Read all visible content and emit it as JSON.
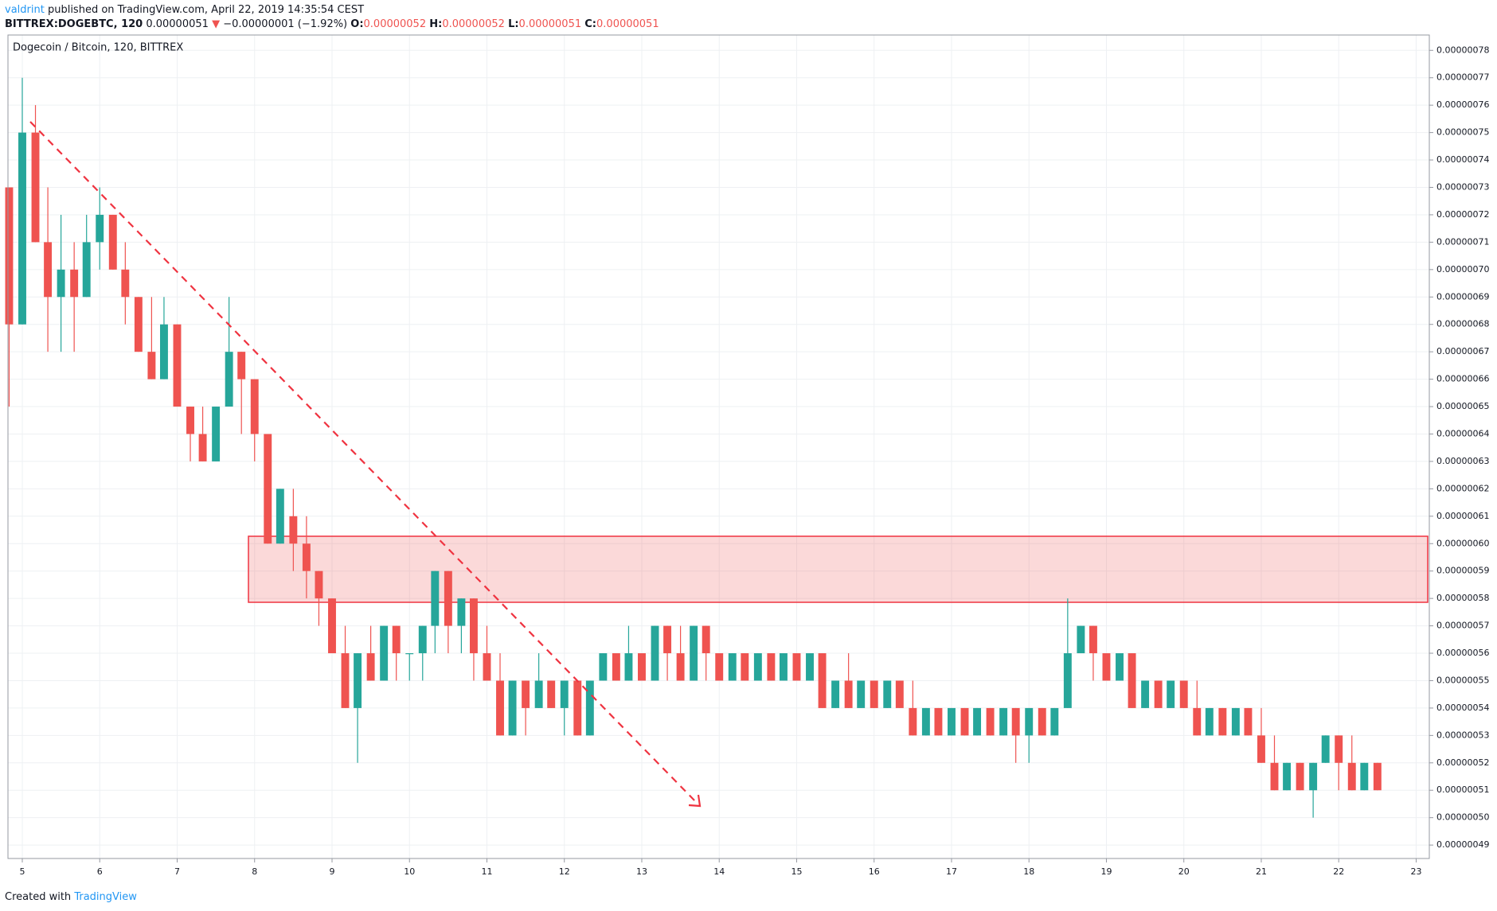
{
  "header": {
    "author": "valdrint",
    "published": "published on TradingView.com, April 22, 2019 14:35:54 CEST",
    "symbol": "BITTREX:DOGEBTC, 120",
    "price": "0.00000051",
    "change": "−0.00000001 (−1.92%)",
    "ohlc": [
      {
        "label": "O:",
        "value": "0.00000052"
      },
      {
        "label": "H:",
        "value": "0.00000052"
      },
      {
        "label": "L:",
        "value": "0.00000051"
      },
      {
        "label": "C:",
        "value": "0.00000051"
      }
    ]
  },
  "footer": {
    "text": "Created with",
    "brand": "TradingView"
  },
  "chart_data": {
    "type": "candlestick",
    "title": "Dogecoin / Bitcoin, 120, BITTREX",
    "up_color": "#26a69a",
    "down_color": "#ef5350",
    "grid": true,
    "xlim": [
      4.815,
      23.17
    ],
    "ylim": [
      4.851e-07,
      7.856e-07
    ],
    "xticks": [
      5,
      6,
      7,
      8,
      9,
      10,
      11,
      12,
      13,
      14,
      15,
      16,
      17,
      18,
      19,
      20,
      21,
      22,
      23
    ],
    "yticks": [
      {
        "value": 7.8e-07,
        "label": "0.00000078"
      },
      {
        "value": 7.7e-07,
        "label": "0.00000077"
      },
      {
        "value": 7.6e-07,
        "label": "0.00000076"
      },
      {
        "value": 7.5e-07,
        "label": "0.00000075"
      },
      {
        "value": 7.4e-07,
        "label": "0.00000074"
      },
      {
        "value": 7.3e-07,
        "label": "0.00000073"
      },
      {
        "value": 7.2e-07,
        "label": "0.00000072"
      },
      {
        "value": 7.1e-07,
        "label": "0.00000071"
      },
      {
        "value": 7e-07,
        "label": "0.00000070"
      },
      {
        "value": 6.9e-07,
        "label": "0.00000069"
      },
      {
        "value": 6.8e-07,
        "label": "0.00000068"
      },
      {
        "value": 6.7e-07,
        "label": "0.00000067"
      },
      {
        "value": 6.6e-07,
        "label": "0.00000066"
      },
      {
        "value": 6.5e-07,
        "label": "0.00000065"
      },
      {
        "value": 6.4e-07,
        "label": "0.00000064"
      },
      {
        "value": 6.3e-07,
        "label": "0.00000063"
      },
      {
        "value": 6.2e-07,
        "label": "0.00000062"
      },
      {
        "value": 6.1e-07,
        "label": "0.00000061"
      },
      {
        "value": 6e-07,
        "label": "0.00000060"
      },
      {
        "value": 5.9e-07,
        "label": "0.00000059"
      },
      {
        "value": 5.8e-07,
        "label": "0.00000058"
      },
      {
        "value": 5.7e-07,
        "label": "0.00000057"
      },
      {
        "value": 5.6e-07,
        "label": "0.00000056"
      },
      {
        "value": 5.5e-07,
        "label": "0.00000055"
      },
      {
        "value": 5.4e-07,
        "label": "0.00000054"
      },
      {
        "value": 5.3e-07,
        "label": "0.00000053"
      },
      {
        "value": 5.2e-07,
        "label": "0.00000052"
      },
      {
        "value": 5.1e-07,
        "label": "0.00000051"
      },
      {
        "value": 5e-07,
        "label": "0.00000050"
      },
      {
        "value": 4.9e-07,
        "label": "0.00000049"
      }
    ],
    "x": [
      4.83,
      5,
      5.17,
      5.33,
      5.5,
      5.67,
      5.83,
      6,
      6.17,
      6.33,
      6.5,
      6.67,
      6.83,
      7,
      7.17,
      7.33,
      7.5,
      7.67,
      7.83,
      8,
      8.17,
      8.33,
      8.5,
      8.67,
      8.83,
      9,
      9.17,
      9.33,
      9.5,
      9.67,
      9.83,
      10,
      10.17,
      10.33,
      10.5,
      10.67,
      10.83,
      11,
      11.17,
      11.33,
      11.5,
      11.67,
      11.83,
      12,
      12.17,
      12.33,
      12.5,
      12.67,
      12.83,
      13,
      13.17,
      13.33,
      13.5,
      13.67,
      13.83,
      14,
      14.17,
      14.33,
      14.5,
      14.67,
      14.83,
      15,
      15.17,
      15.33,
      15.5,
      15.67,
      15.83,
      16,
      16.17,
      16.33,
      16.5,
      16.67,
      16.83,
      17,
      17.17,
      17.33,
      17.5,
      17.67,
      17.83,
      18,
      18.17,
      18.33,
      18.5,
      18.67,
      18.83,
      19,
      19.17,
      19.33,
      19.5,
      19.67,
      19.83,
      20,
      20.17,
      20.33,
      20.5,
      20.67,
      20.83,
      21,
      21.17,
      21.33,
      21.5,
      21.67,
      21.83,
      22,
      22.17,
      22.33,
      22.5
    ],
    "open": [
      7.3e-07,
      6.8e-07,
      7.5e-07,
      7.1e-07,
      6.9e-07,
      7e-07,
      6.9e-07,
      7.1e-07,
      7.2e-07,
      7e-07,
      6.9e-07,
      6.7e-07,
      6.6e-07,
      6.8e-07,
      6.5e-07,
      6.4e-07,
      6.3e-07,
      6.5e-07,
      6.7e-07,
      6.6e-07,
      6.4e-07,
      6e-07,
      6.1e-07,
      6e-07,
      5.9e-07,
      5.8e-07,
      5.6e-07,
      5.4e-07,
      5.6e-07,
      5.5e-07,
      5.7e-07,
      5.6e-07,
      5.6e-07,
      5.7e-07,
      5.9e-07,
      5.7e-07,
      5.8e-07,
      5.6e-07,
      5.5e-07,
      5.3e-07,
      5.5e-07,
      5.4e-07,
      5.5e-07,
      5.4e-07,
      5.5e-07,
      5.3e-07,
      5.5e-07,
      5.6e-07,
      5.5e-07,
      5.6e-07,
      5.5e-07,
      5.7e-07,
      5.6e-07,
      5.5e-07,
      5.7e-07,
      5.6e-07,
      5.5e-07,
      5.6e-07,
      5.5e-07,
      5.6e-07,
      5.5e-07,
      5.6e-07,
      5.5e-07,
      5.6e-07,
      5.4e-07,
      5.5e-07,
      5.4e-07,
      5.5e-07,
      5.4e-07,
      5.5e-07,
      5.4e-07,
      5.3e-07,
      5.4e-07,
      5.3e-07,
      5.4e-07,
      5.3e-07,
      5.4e-07,
      5.3e-07,
      5.4e-07,
      5.3e-07,
      5.4e-07,
      5.3e-07,
      5.4e-07,
      5.6e-07,
      5.7e-07,
      5.6e-07,
      5.5e-07,
      5.6e-07,
      5.4e-07,
      5.5e-07,
      5.4e-07,
      5.5e-07,
      5.4e-07,
      5.3e-07,
      5.4e-07,
      5.3e-07,
      5.4e-07,
      5.3e-07,
      5.2e-07,
      5.1e-07,
      5.2e-07,
      5.1e-07,
      5.2e-07,
      5.3e-07,
      5.2e-07,
      5.1e-07,
      5.2e-07
    ],
    "high": [
      7.3e-07,
      7.7e-07,
      7.6e-07,
      7.3e-07,
      7.2e-07,
      7.1e-07,
      7.2e-07,
      7.3e-07,
      7.2e-07,
      7.1e-07,
      6.9e-07,
      6.9e-07,
      6.9e-07,
      6.8e-07,
      6.5e-07,
      6.5e-07,
      6.5e-07,
      6.9e-07,
      6.7e-07,
      6.6e-07,
      6.4e-07,
      6.2e-07,
      6.2e-07,
      6.1e-07,
      5.9e-07,
      5.8e-07,
      5.7e-07,
      5.6e-07,
      5.7e-07,
      5.7e-07,
      5.7e-07,
      5.6e-07,
      5.7e-07,
      5.9e-07,
      5.9e-07,
      5.8e-07,
      5.8e-07,
      5.7e-07,
      5.6e-07,
      5.5e-07,
      5.5e-07,
      5.6e-07,
      5.5e-07,
      5.5e-07,
      5.5e-07,
      5.5e-07,
      5.6e-07,
      5.6e-07,
      5.7e-07,
      5.6e-07,
      5.7e-07,
      5.7e-07,
      5.7e-07,
      5.7e-07,
      5.7e-07,
      5.6e-07,
      5.6e-07,
      5.6e-07,
      5.6e-07,
      5.6e-07,
      5.6e-07,
      5.6e-07,
      5.6e-07,
      5.6e-07,
      5.5e-07,
      5.6e-07,
      5.5e-07,
      5.5e-07,
      5.5e-07,
      5.5e-07,
      5.5e-07,
      5.4e-07,
      5.4e-07,
      5.4e-07,
      5.4e-07,
      5.4e-07,
      5.4e-07,
      5.4e-07,
      5.4e-07,
      5.4e-07,
      5.4e-07,
      5.4e-07,
      5.8e-07,
      5.7e-07,
      5.7e-07,
      5.6e-07,
      5.6e-07,
      5.6e-07,
      5.5e-07,
      5.5e-07,
      5.5e-07,
      5.5e-07,
      5.5e-07,
      5.4e-07,
      5.4e-07,
      5.4e-07,
      5.4e-07,
      5.4e-07,
      5.3e-07,
      5.2e-07,
      5.2e-07,
      5.2e-07,
      5.3e-07,
      5.3e-07,
      5.3e-07,
      5.2e-07,
      5.2e-07
    ],
    "low": [
      6.5e-07,
      6.8e-07,
      7.1e-07,
      6.7e-07,
      6.7e-07,
      6.7e-07,
      6.9e-07,
      7e-07,
      7e-07,
      6.8e-07,
      6.7e-07,
      6.6e-07,
      6.6e-07,
      6.5e-07,
      6.3e-07,
      6.3e-07,
      6.3e-07,
      6.5e-07,
      6.4e-07,
      6.3e-07,
      6e-07,
      6e-07,
      5.9e-07,
      5.8e-07,
      5.7e-07,
      5.6e-07,
      5.4e-07,
      5.2e-07,
      5.5e-07,
      5.5e-07,
      5.5e-07,
      5.5e-07,
      5.5e-07,
      5.6e-07,
      5.6e-07,
      5.6e-07,
      5.5e-07,
      5.5e-07,
      5.3e-07,
      5.3e-07,
      5.3e-07,
      5.4e-07,
      5.4e-07,
      5.3e-07,
      5.3e-07,
      5.3e-07,
      5.5e-07,
      5.5e-07,
      5.5e-07,
      5.5e-07,
      5.5e-07,
      5.5e-07,
      5.5e-07,
      5.5e-07,
      5.5e-07,
      5.5e-07,
      5.5e-07,
      5.5e-07,
      5.5e-07,
      5.5e-07,
      5.5e-07,
      5.5e-07,
      5.5e-07,
      5.4e-07,
      5.4e-07,
      5.4e-07,
      5.4e-07,
      5.4e-07,
      5.4e-07,
      5.4e-07,
      5.3e-07,
      5.3e-07,
      5.3e-07,
      5.3e-07,
      5.3e-07,
      5.3e-07,
      5.3e-07,
      5.3e-07,
      5.2e-07,
      5.2e-07,
      5.3e-07,
      5.3e-07,
      5.4e-07,
      5.6e-07,
      5.5e-07,
      5.5e-07,
      5.5e-07,
      5.4e-07,
      5.4e-07,
      5.4e-07,
      5.4e-07,
      5.4e-07,
      5.3e-07,
      5.3e-07,
      5.3e-07,
      5.3e-07,
      5.3e-07,
      5.2e-07,
      5.1e-07,
      5.1e-07,
      5.1e-07,
      5e-07,
      5.2e-07,
      5.1e-07,
      5.1e-07,
      5.1e-07,
      5.1e-07
    ],
    "close": [
      6.8e-07,
      7.5e-07,
      7.1e-07,
      6.9e-07,
      7e-07,
      6.9e-07,
      7.1e-07,
      7.2e-07,
      7e-07,
      6.9e-07,
      6.7e-07,
      6.6e-07,
      6.8e-07,
      6.5e-07,
      6.4e-07,
      6.3e-07,
      6.5e-07,
      6.7e-07,
      6.6e-07,
      6.4e-07,
      6e-07,
      6.2e-07,
      6e-07,
      5.9e-07,
      5.8e-07,
      5.6e-07,
      5.4e-07,
      5.6e-07,
      5.5e-07,
      5.7e-07,
      5.6e-07,
      5.6e-07,
      5.7e-07,
      5.9e-07,
      5.7e-07,
      5.8e-07,
      5.6e-07,
      5.5e-07,
      5.3e-07,
      5.5e-07,
      5.4e-07,
      5.5e-07,
      5.4e-07,
      5.5e-07,
      5.3e-07,
      5.5e-07,
      5.6e-07,
      5.5e-07,
      5.6e-07,
      5.5e-07,
      5.7e-07,
      5.6e-07,
      5.5e-07,
      5.7e-07,
      5.6e-07,
      5.5e-07,
      5.6e-07,
      5.5e-07,
      5.6e-07,
      5.5e-07,
      5.6e-07,
      5.5e-07,
      5.6e-07,
      5.4e-07,
      5.5e-07,
      5.4e-07,
      5.5e-07,
      5.4e-07,
      5.5e-07,
      5.4e-07,
      5.3e-07,
      5.4e-07,
      5.3e-07,
      5.4e-07,
      5.3e-07,
      5.4e-07,
      5.3e-07,
      5.4e-07,
      5.3e-07,
      5.4e-07,
      5.3e-07,
      5.4e-07,
      5.6e-07,
      5.7e-07,
      5.6e-07,
      5.5e-07,
      5.6e-07,
      5.4e-07,
      5.5e-07,
      5.4e-07,
      5.5e-07,
      5.4e-07,
      5.3e-07,
      5.4e-07,
      5.3e-07,
      5.4e-07,
      5.3e-07,
      5.2e-07,
      5.1e-07,
      5.2e-07,
      5.1e-07,
      5.2e-07,
      5.3e-07,
      5.2e-07,
      5.1e-07,
      5.2e-07,
      5.1e-07
    ]
  }
}
